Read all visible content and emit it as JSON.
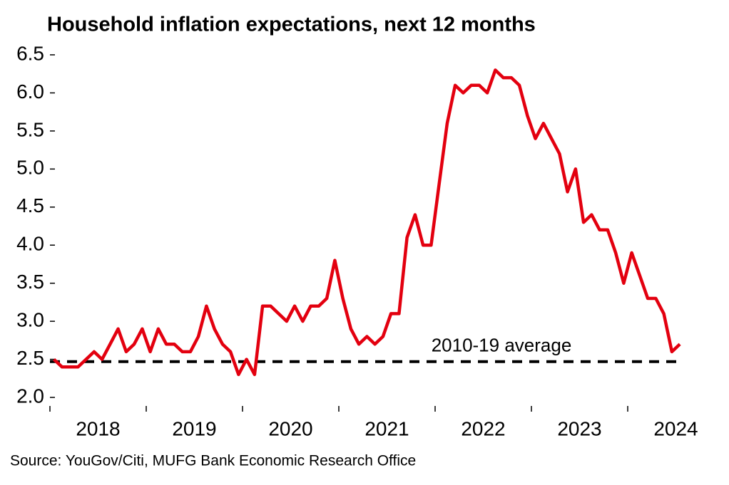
{
  "chart_data": {
    "type": "line",
    "title": "Household inflation expectations, next 12 months",
    "source": "Source: YouGov/Citi, MUFG Bank Economic Research Office",
    "x": [
      "2018-01",
      "2018-02",
      "2018-03",
      "2018-04",
      "2018-05",
      "2018-06",
      "2018-07",
      "2018-08",
      "2018-09",
      "2018-10",
      "2018-11",
      "2018-12",
      "2019-01",
      "2019-02",
      "2019-03",
      "2019-04",
      "2019-05",
      "2019-06",
      "2019-07",
      "2019-08",
      "2019-09",
      "2019-10",
      "2019-11",
      "2019-12",
      "2020-01",
      "2020-02",
      "2020-03",
      "2020-04",
      "2020-05",
      "2020-06",
      "2020-07",
      "2020-08",
      "2020-09",
      "2020-10",
      "2020-11",
      "2020-12",
      "2021-01",
      "2021-02",
      "2021-03",
      "2021-04",
      "2021-05",
      "2021-06",
      "2021-07",
      "2021-08",
      "2021-09",
      "2021-10",
      "2021-11",
      "2021-12",
      "2022-01",
      "2022-02",
      "2022-03",
      "2022-04",
      "2022-05",
      "2022-06",
      "2022-07",
      "2022-08",
      "2022-09",
      "2022-10",
      "2022-11",
      "2022-12",
      "2023-01",
      "2023-02",
      "2023-03",
      "2023-04",
      "2023-05",
      "2023-06",
      "2023-07",
      "2023-08",
      "2023-09",
      "2023-10",
      "2023-11",
      "2023-12",
      "2024-01",
      "2024-02",
      "2024-03",
      "2024-04",
      "2024-05",
      "2024-06",
      "2024-07"
    ],
    "series": [
      {
        "name": "Household inflation expectations",
        "color": "#e3000f",
        "values": [
          2.5,
          2.4,
          2.4,
          2.4,
          2.5,
          2.6,
          2.5,
          2.7,
          2.9,
          2.6,
          2.7,
          2.9,
          2.6,
          2.9,
          2.7,
          2.7,
          2.6,
          2.6,
          2.8,
          3.2,
          2.9,
          2.7,
          2.6,
          2.3,
          2.5,
          2.3,
          3.2,
          3.2,
          3.1,
          3.0,
          3.2,
          3.0,
          3.2,
          3.2,
          3.3,
          3.8,
          3.3,
          2.9,
          2.7,
          2.8,
          2.7,
          2.8,
          3.1,
          3.1,
          4.1,
          4.4,
          4.0,
          4.0,
          4.8,
          5.6,
          6.1,
          6.0,
          6.1,
          6.1,
          6.0,
          6.3,
          6.2,
          6.2,
          6.1,
          5.7,
          5.4,
          5.6,
          5.4,
          5.2,
          4.7,
          5.0,
          4.3,
          4.4,
          4.2,
          4.2,
          3.9,
          3.5,
          3.9,
          3.6,
          3.3,
          3.3,
          3.1,
          2.6,
          2.7
        ]
      }
    ],
    "reference_lines": [
      {
        "label": "2010-19 average",
        "value": 2.47,
        "color": "#000000"
      }
    ],
    "xlim": [
      2018,
      2025
    ],
    "xticks": [
      2018,
      2019,
      2020,
      2021,
      2022,
      2023,
      2024
    ],
    "ylim": [
      2.0,
      6.5
    ],
    "yticks": [
      {
        "value": 2,
        "label": "2.0"
      },
      2.5,
      {
        "value": 3,
        "label": "3.0"
      },
      3.5,
      {
        "value": 4,
        "label": "4.0"
      },
      4.5,
      {
        "value": 5,
        "label": "5.0"
      },
      5.5,
      {
        "value": 6,
        "label": "6.0"
      },
      6.5
    ],
    "grid": false
  }
}
